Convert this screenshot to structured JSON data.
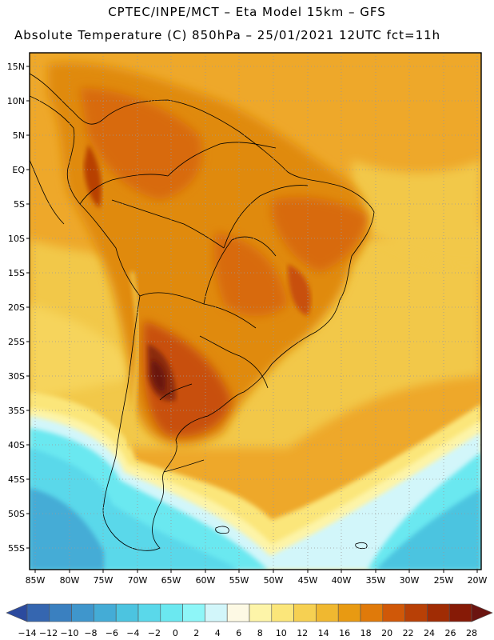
{
  "header": {
    "line1": "CPTEC/INPE/MCT –  Eta Model 15km – GFS",
    "line2": "Absolute Temperature (C) 850hPa – 25/01/2021 12UTC fct=11h"
  },
  "map": {
    "lat_labels": [
      "15N",
      "10N",
      "5N",
      "EQ",
      "5S",
      "10S",
      "15S",
      "20S",
      "25S",
      "30S",
      "35S",
      "40S",
      "45S",
      "50S",
      "55S"
    ],
    "lon_labels": [
      "85W",
      "80W",
      "75W",
      "70W",
      "65W",
      "60W",
      "55W",
      "50W",
      "45W",
      "40W",
      "35W",
      "30W",
      "25W",
      "20W"
    ]
  },
  "colorbar": {
    "levels": [
      "-14",
      "-12",
      "-10",
      "-8",
      "-6",
      "-4",
      "-2",
      "0",
      "2",
      "4",
      "6",
      "8",
      "10",
      "12",
      "14",
      "16",
      "18",
      "20",
      "22",
      "24",
      "26",
      "28"
    ],
    "colors": [
      "#2b4a9e",
      "#3566b0",
      "#3a80c0",
      "#3f96cc",
      "#44acd6",
      "#4cc4e0",
      "#5ad8ea",
      "#6be8f0",
      "#8ef6f8",
      "#d2f6fa",
      "#fdf9e4",
      "#fdf4a8",
      "#fbe67a",
      "#f6d052",
      "#f0b830",
      "#e89a12",
      "#e07a0a",
      "#d05808",
      "#b84006",
      "#a02c04",
      "#861a06",
      "#6b1410"
    ]
  }
}
